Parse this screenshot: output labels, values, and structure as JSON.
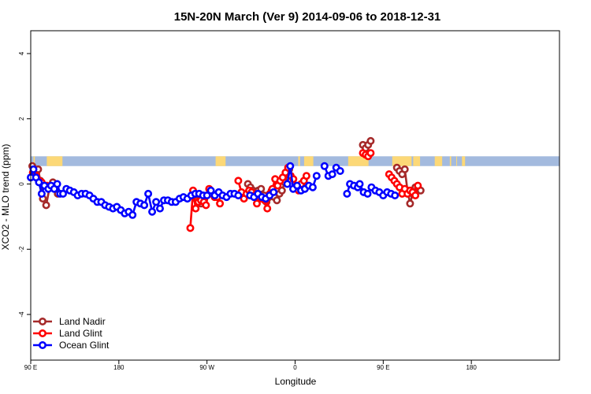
{
  "chart_data": {
    "type": "line",
    "title": "15N-20N March (Ver 9)   2014-09-06 to 2018-12-31",
    "xlabel": "Longitude",
    "ylabel": "XCO2 - MLO trend (ppm)",
    "xlim": [
      -90,
      180
    ],
    "ylim": [
      -5.4,
      4.7
    ],
    "x_ticks": [
      {
        "value": -90,
        "label": "90 E"
      },
      {
        "value": -45,
        "label": "180"
      },
      {
        "value": 0,
        "label": "90 W"
      },
      {
        "value": 45,
        "label": "0"
      },
      {
        "value": 90,
        "label": "90 E"
      },
      {
        "value": 135,
        "label": "180"
      }
    ],
    "y_ticks": [
      -4,
      -2,
      0,
      2,
      4
    ],
    "grid": false,
    "legend_position": "bottom-left",
    "land_band": {
      "y_range": [
        0.55,
        0.85
      ],
      "ocean_color": "#a3bade",
      "land_color": "#fcd877",
      "land_segments": [
        [
          -88.6,
          -87.9
        ],
        [
          -81.8,
          -73.8
        ],
        [
          4.4,
          9.5
        ],
        [
          46.6,
          47.5
        ],
        [
          49.6,
          54.3
        ],
        [
          72.1,
          82.5
        ],
        [
          94.6,
          104.5
        ],
        [
          105.3,
          108.8
        ],
        [
          116.3,
          120.1
        ],
        [
          124.0,
          124.7
        ],
        [
          127.3,
          127.7
        ],
        [
          130.2,
          131.8
        ]
      ]
    },
    "series": [
      {
        "name": "Land Nadir",
        "color": "#a52a2a",
        "segments": [
          [
            [
              -89.2,
              0.55
            ],
            [
              -88.2,
              0.45
            ],
            [
              -87.2,
              0.35
            ],
            [
              -86.2,
              0.45
            ],
            [
              -85.1,
              0.1
            ],
            [
              -83.8,
              -0.45
            ],
            [
              -82.1,
              -0.65
            ],
            [
              -80.4,
              -0.1
            ],
            [
              -78.7,
              0.05
            ],
            [
              -77.3,
              -0.1
            ],
            [
              -76.2,
              -0.3
            ]
          ],
          [
            [
              -6.1,
              -0.4
            ],
            [
              -5.1,
              -0.5
            ],
            [
              -4.1,
              -0.55
            ],
            [
              -3.0,
              -0.6
            ]
          ],
          [
            [
              20.9,
              0.0
            ],
            [
              22.2,
              -0.1
            ],
            [
              23.5,
              -0.2
            ],
            [
              24.9,
              -0.25
            ],
            [
              26.2,
              -0.2
            ],
            [
              27.6,
              -0.15
            ],
            [
              29.1,
              -0.35
            ],
            [
              30.4,
              -0.55
            ],
            [
              31.7,
              -0.4
            ],
            [
              33.0,
              -0.2
            ],
            [
              34.4,
              -0.4
            ],
            [
              35.7,
              -0.5
            ],
            [
              37.0,
              -0.3
            ],
            [
              38.3,
              -0.2
            ],
            [
              39.7,
              0.05
            ],
            [
              41.0,
              0.3
            ],
            [
              42.0,
              0.45
            ]
          ],
          [
            [
              79.6,
              1.2
            ],
            [
              81.0,
              1.1
            ],
            [
              82.3,
              1.2
            ],
            [
              83.6,
              1.32
            ]
          ],
          [
            [
              97.0,
              0.5
            ],
            [
              98.3,
              0.4
            ],
            [
              99.7,
              0.3
            ],
            [
              101.0,
              0.45
            ],
            [
              102.4,
              -0.2
            ],
            [
              103.7,
              -0.6
            ],
            [
              105.0,
              -0.3
            ],
            [
              106.4,
              -0.1
            ],
            [
              107.7,
              -0.1
            ],
            [
              109.1,
              -0.2
            ]
          ]
        ]
      },
      {
        "name": "Land Glint",
        "color": "#ff0000",
        "segments": [
          [
            [
              -88.9,
              0.35
            ],
            [
              -87.2,
              0.25
            ],
            [
              -85.8,
              0.1
            ],
            [
              -84.4,
              0.05
            ],
            [
              -83.1,
              -0.05
            ],
            [
              -81.8,
              -0.05
            ]
          ],
          [
            [
              -8.5,
              -1.35
            ],
            [
              -7.1,
              -0.2
            ],
            [
              -5.8,
              -0.75
            ],
            [
              -4.4,
              -0.55
            ],
            [
              -3.1,
              -0.5
            ],
            [
              -1.6,
              -0.55
            ],
            [
              -0.5,
              -0.65
            ],
            [
              1.1,
              -0.15
            ],
            [
              2.6,
              -0.3
            ],
            [
              3.9,
              -0.4
            ],
            [
              5.3,
              -0.4
            ],
            [
              6.6,
              -0.6
            ]
          ],
          [
            [
              16.0,
              0.1
            ],
            [
              17.6,
              -0.25
            ],
            [
              18.9,
              -0.45
            ],
            [
              20.2,
              -0.3
            ],
            [
              21.5,
              -0.2
            ],
            [
              22.8,
              -0.25
            ],
            [
              24.2,
              -0.35
            ],
            [
              25.5,
              -0.6
            ],
            [
              26.8,
              -0.4
            ],
            [
              28.2,
              -0.45
            ],
            [
              29.5,
              -0.5
            ],
            [
              30.8,
              -0.75
            ],
            [
              32.1,
              -0.3
            ],
            [
              33.4,
              -0.15
            ],
            [
              34.8,
              0.15
            ],
            [
              36.1,
              -0.05
            ],
            [
              37.4,
              0.1
            ],
            [
              38.7,
              0.2
            ],
            [
              40.1,
              0.35
            ],
            [
              41.4,
              0.5
            ],
            [
              42.8,
              0.25
            ],
            [
              44.1,
              0.15
            ],
            [
              45.5,
              -0.1
            ],
            [
              46.8,
              -0.2
            ],
            [
              48.1,
              0.0
            ],
            [
              49.5,
              0.1
            ],
            [
              50.8,
              0.25
            ]
          ],
          [
            [
              79.6,
              0.95
            ],
            [
              81.0,
              0.9
            ],
            [
              82.3,
              0.85
            ],
            [
              83.6,
              0.95
            ]
          ],
          [
            [
              93.0,
              0.3
            ],
            [
              94.3,
              0.2
            ],
            [
              95.7,
              0.1
            ],
            [
              97.0,
              0.0
            ],
            [
              98.3,
              -0.1
            ],
            [
              99.7,
              -0.3
            ],
            [
              101.0,
              -0.15
            ],
            [
              102.4,
              -0.3
            ],
            [
              103.7,
              -0.2
            ],
            [
              105.0,
              -0.25
            ],
            [
              106.4,
              -0.35
            ],
            [
              107.7,
              -0.05
            ]
          ]
        ]
      },
      {
        "name": "Ocean Glint",
        "color": "#0000ff",
        "segments": [
          [
            [
              -90.0,
              0.2
            ],
            [
              -88.6,
              0.45
            ],
            [
              -87.3,
              0.2
            ],
            [
              -85.8,
              0.05
            ],
            [
              -84.4,
              -0.3
            ],
            [
              -83.0,
              -0.05
            ],
            [
              -81.0,
              -0.15
            ],
            [
              -79.6,
              -0.05
            ],
            [
              -78.0,
              -0.15
            ],
            [
              -76.5,
              0.0
            ],
            [
              -75.0,
              -0.3
            ],
            [
              -73.5,
              -0.3
            ],
            [
              -71.8,
              -0.15
            ],
            [
              -70.0,
              -0.2
            ],
            [
              -68.0,
              -0.25
            ],
            [
              -66.0,
              -0.35
            ],
            [
              -64.0,
              -0.3
            ],
            [
              -62.0,
              -0.3
            ],
            [
              -60.0,
              -0.35
            ],
            [
              -58.0,
              -0.45
            ],
            [
              -56.0,
              -0.55
            ],
            [
              -54.0,
              -0.55
            ],
            [
              -52.0,
              -0.65
            ],
            [
              -50.0,
              -0.7
            ],
            [
              -48.0,
              -0.75
            ],
            [
              -46.0,
              -0.7
            ],
            [
              -44.0,
              -0.8
            ],
            [
              -42.0,
              -0.9
            ],
            [
              -40.0,
              -0.85
            ],
            [
              -38.0,
              -0.95
            ],
            [
              -36.0,
              -0.55
            ],
            [
              -34.0,
              -0.6
            ],
            [
              -32.0,
              -0.65
            ],
            [
              -30.0,
              -0.3
            ],
            [
              -28.0,
              -0.85
            ],
            [
              -26.0,
              -0.55
            ],
            [
              -24.0,
              -0.75
            ],
            [
              -22.0,
              -0.5
            ],
            [
              -20.0,
              -0.5
            ],
            [
              -18.0,
              -0.55
            ],
            [
              -16.0,
              -0.55
            ],
            [
              -14.0,
              -0.45
            ],
            [
              -12.0,
              -0.4
            ],
            [
              -10.0,
              -0.45
            ],
            [
              -8.0,
              -0.35
            ],
            [
              -6.0,
              -0.3
            ],
            [
              -4.0,
              -0.3
            ],
            [
              -2.0,
              -0.35
            ],
            [
              0.0,
              -0.35
            ],
            [
              2.0,
              -0.2
            ],
            [
              4.0,
              -0.35
            ],
            [
              6.0,
              -0.25
            ],
            [
              8.0,
              -0.35
            ],
            [
              10.0,
              -0.4
            ],
            [
              12.0,
              -0.3
            ],
            [
              14.0,
              -0.3
            ],
            [
              16.0,
              -0.35
            ]
          ],
          [
            [
              22.0,
              -0.35
            ],
            [
              24.0,
              -0.4
            ],
            [
              26.0,
              -0.3
            ],
            [
              28.0,
              -0.4
            ],
            [
              30.0,
              -0.45
            ],
            [
              32.0,
              -0.35
            ],
            [
              34.0,
              -0.25
            ]
          ],
          [
            [
              41.0,
              0.0
            ],
            [
              42.5,
              0.55
            ],
            [
              44.0,
              -0.15
            ],
            [
              46.0,
              -0.05
            ],
            [
              48.0,
              -0.2
            ],
            [
              50.0,
              -0.15
            ],
            [
              52.0,
              -0.05
            ],
            [
              54.0,
              -0.1
            ],
            [
              56.0,
              0.25
            ]
          ],
          [
            [
              60.0,
              0.55
            ],
            [
              62.0,
              0.25
            ],
            [
              64.0,
              0.3
            ],
            [
              66.0,
              0.5
            ],
            [
              68.0,
              0.4
            ]
          ],
          [
            [
              71.5,
              -0.3
            ],
            [
              73.0,
              0.0
            ],
            [
              75.0,
              -0.05
            ],
            [
              77.0,
              -0.1
            ],
            [
              78.0,
              0.0
            ],
            [
              80.0,
              -0.25
            ],
            [
              82.0,
              -0.3
            ],
            [
              84.0,
              -0.1
            ],
            [
              86.0,
              -0.2
            ],
            [
              88.0,
              -0.25
            ],
            [
              90.0,
              -0.35
            ],
            [
              92.0,
              -0.25
            ],
            [
              94.0,
              -0.3
            ],
            [
              96.0,
              -0.35
            ]
          ]
        ]
      }
    ]
  }
}
